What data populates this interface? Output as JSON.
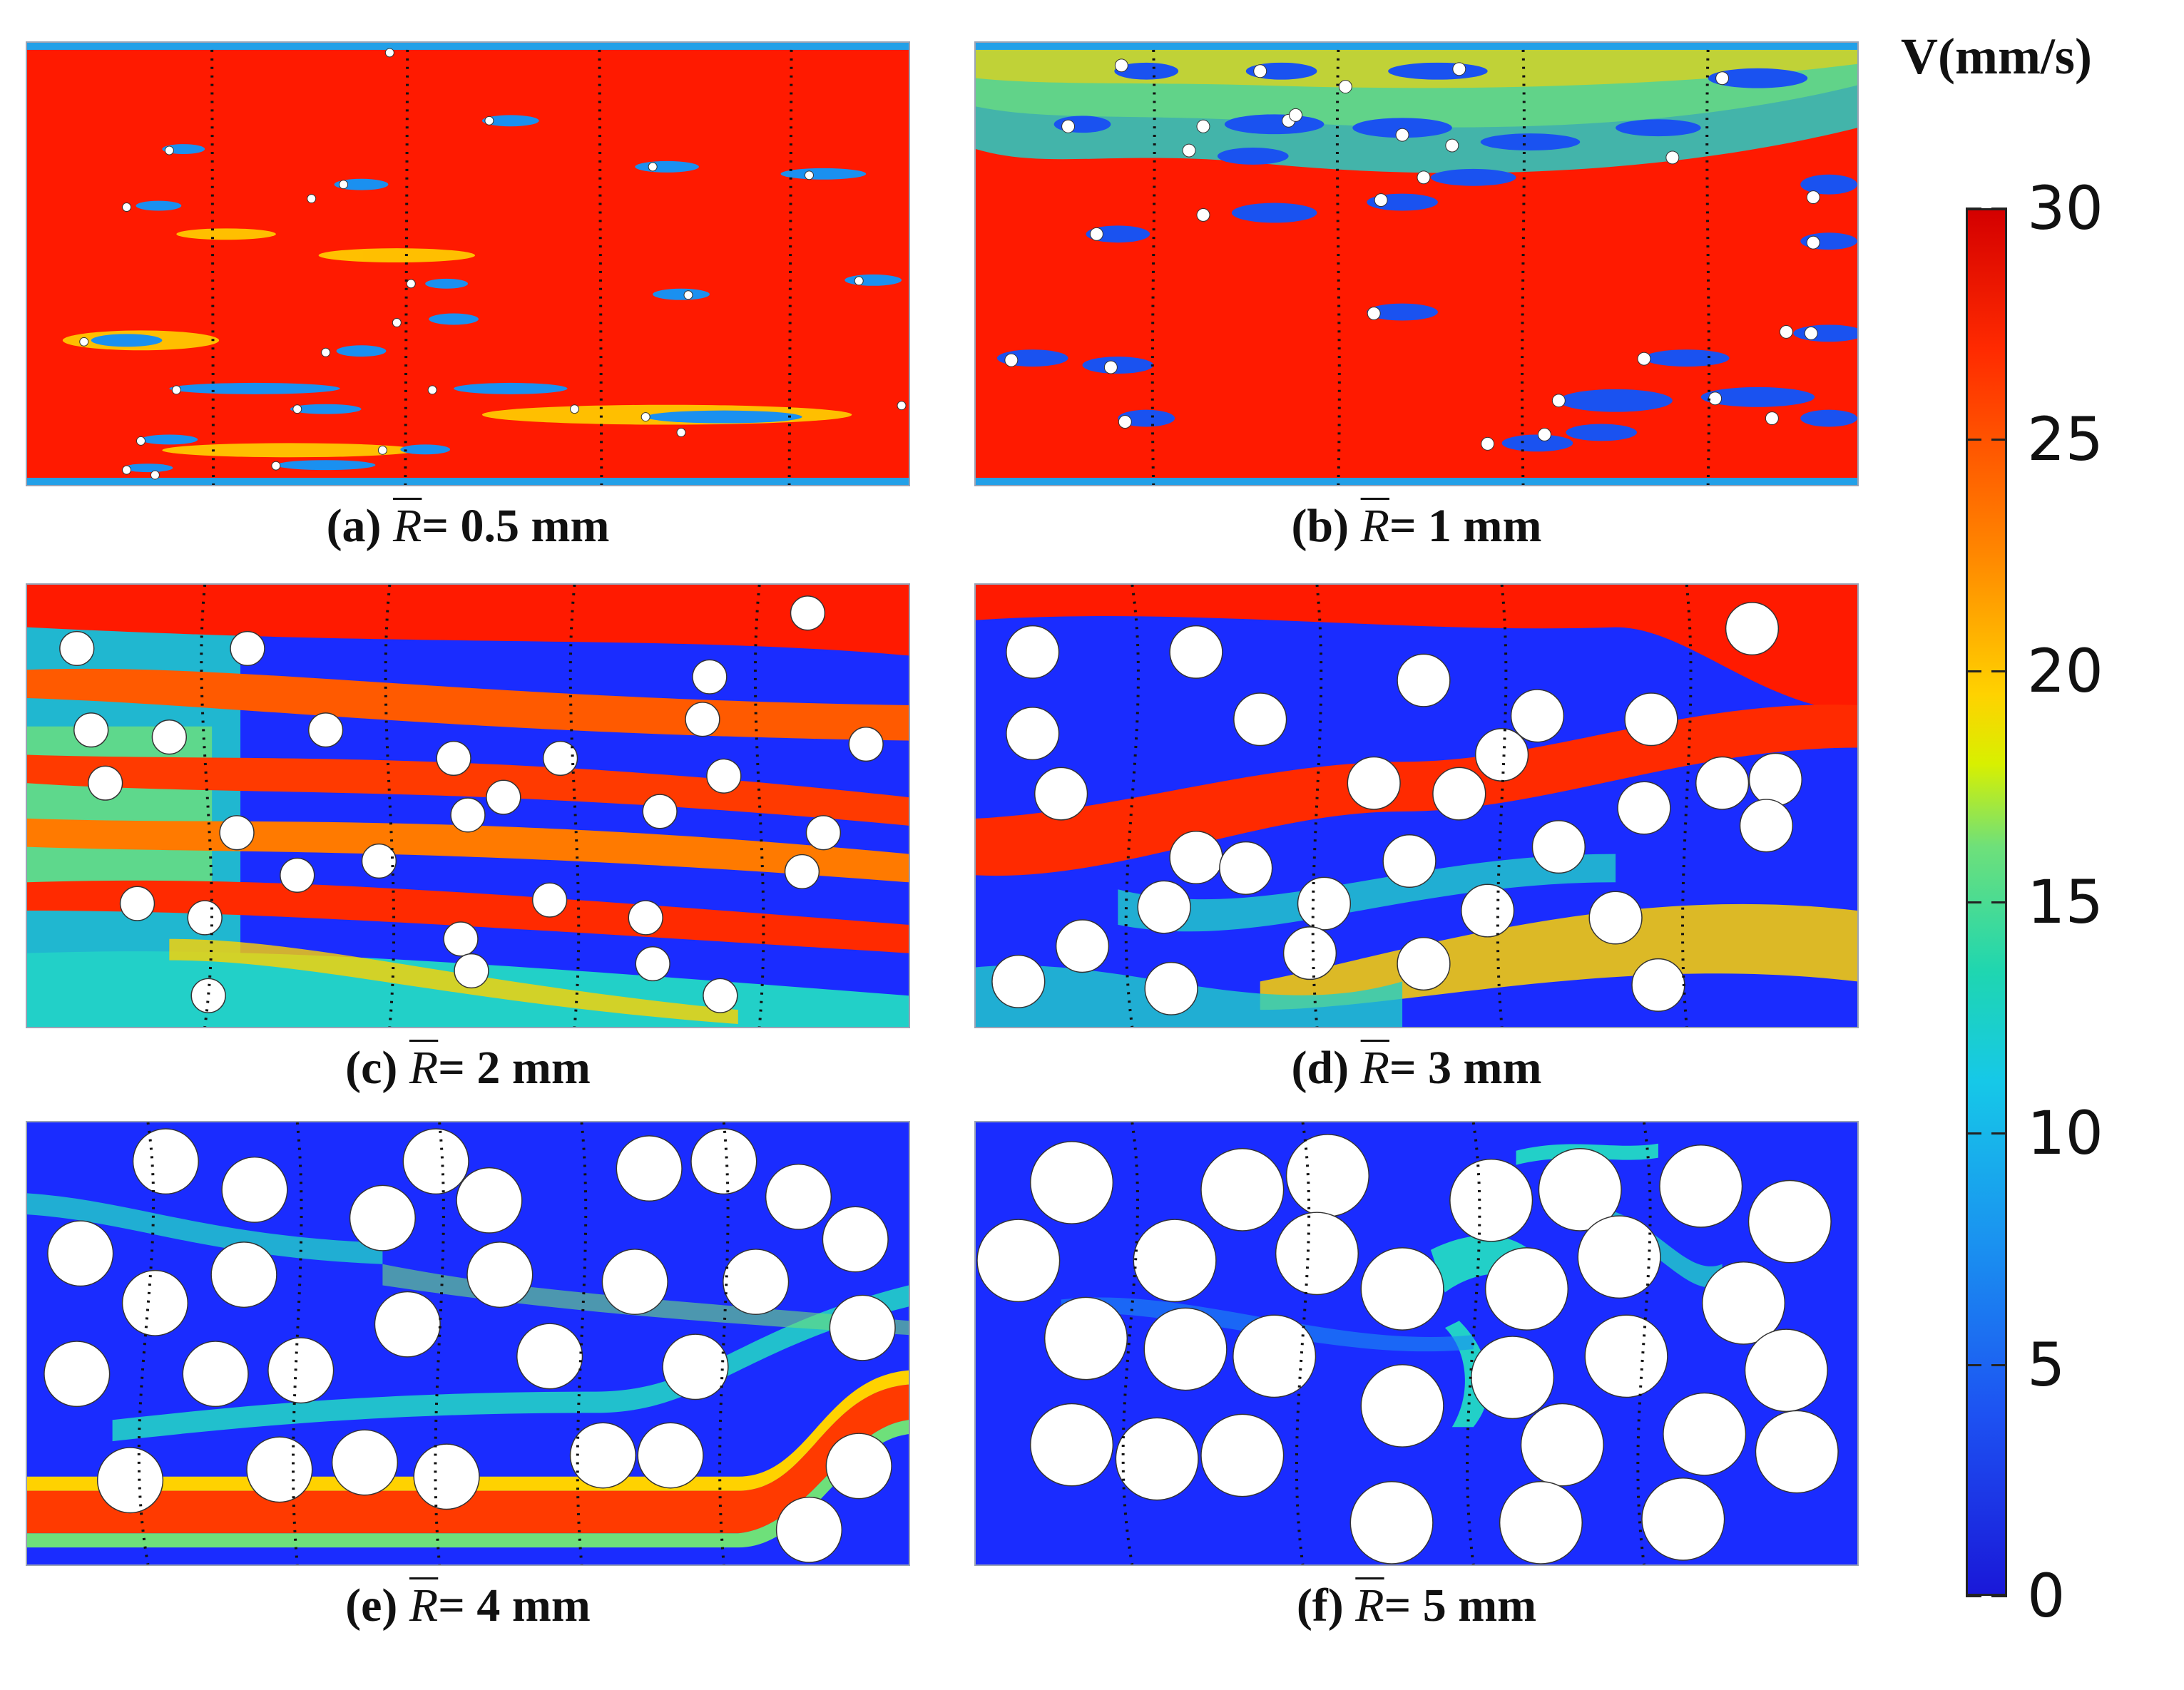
{
  "panels": [
    {
      "label": "(a)",
      "symbol": "R",
      "value": "= 0.5 mm"
    },
    {
      "label": "(b)",
      "symbol": "R",
      "value": "= 1 mm"
    },
    {
      "label": "(c)",
      "symbol": "R",
      "value": "= 2 mm"
    },
    {
      "label": "(d)",
      "symbol": "R",
      "value": "= 3 mm"
    },
    {
      "label": "(e)",
      "symbol": "R",
      "value": "= 4 mm"
    },
    {
      "label": "(f)",
      "symbol": "R",
      "value": "= 5 mm"
    }
  ],
  "colorbar": {
    "title": "V(mm/s)",
    "ticks": [
      "30",
      "25",
      "20",
      "15",
      "10",
      "5",
      "0"
    ],
    "max": 30,
    "min": 0
  },
  "colors": {
    "high": "#ff1a00",
    "low": "#1a2cff",
    "mid": "#22d0c8",
    "particle": "#ffffff"
  }
}
